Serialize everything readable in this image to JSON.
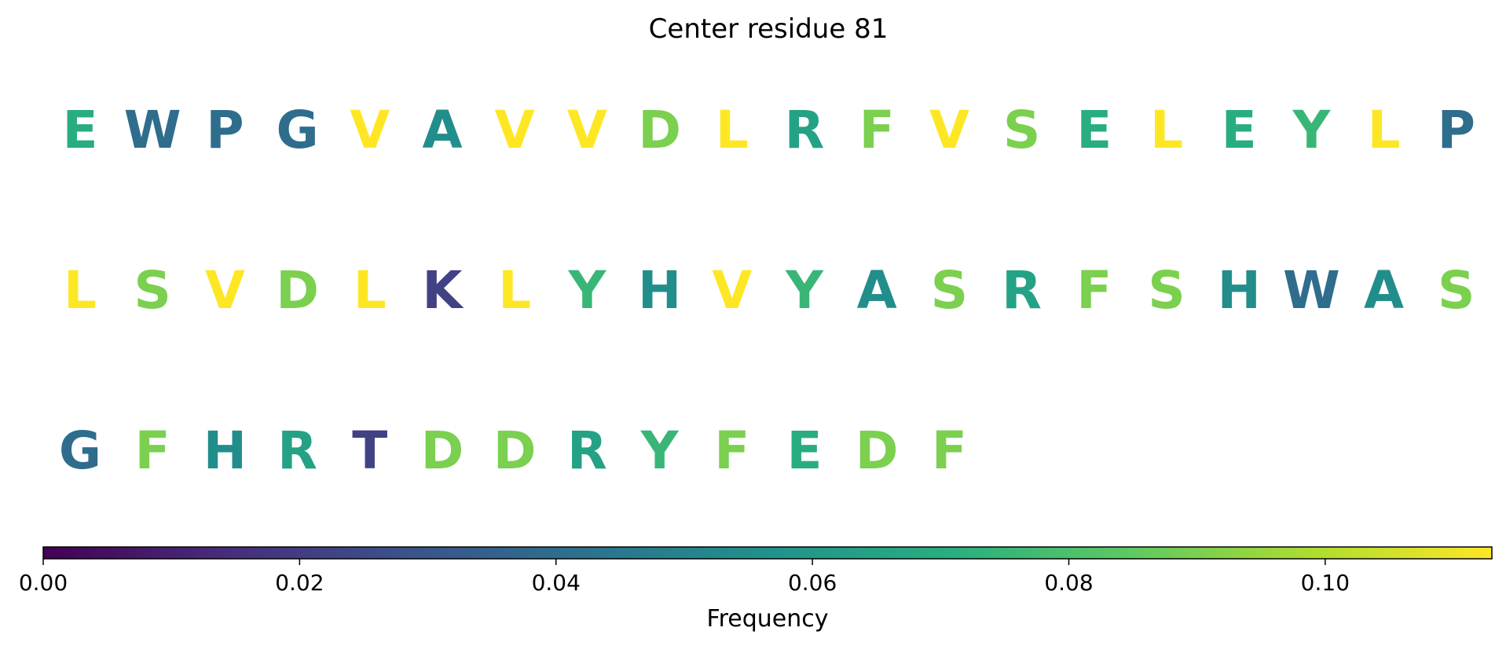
{
  "chart_data": {
    "type": "sequence-logo",
    "title": "Center residue 81",
    "colormap": "viridis",
    "residues": [
      {
        "letter": "E",
        "frequency": 0.07
      },
      {
        "letter": "W",
        "frequency": 0.04
      },
      {
        "letter": "P",
        "frequency": 0.04
      },
      {
        "letter": "G",
        "frequency": 0.04
      },
      {
        "letter": "V",
        "frequency": 0.113
      },
      {
        "letter": "A",
        "frequency": 0.055
      },
      {
        "letter": "V",
        "frequency": 0.113
      },
      {
        "letter": "V",
        "frequency": 0.113
      },
      {
        "letter": "D",
        "frequency": 0.09
      },
      {
        "letter": "L",
        "frequency": 0.113
      },
      {
        "letter": "R",
        "frequency": 0.065
      },
      {
        "letter": "F",
        "frequency": 0.09
      },
      {
        "letter": "V",
        "frequency": 0.113
      },
      {
        "letter": "S",
        "frequency": 0.09
      },
      {
        "letter": "E",
        "frequency": 0.07
      },
      {
        "letter": "L",
        "frequency": 0.113
      },
      {
        "letter": "E",
        "frequency": 0.07
      },
      {
        "letter": "Y",
        "frequency": 0.075
      },
      {
        "letter": "L",
        "frequency": 0.113
      },
      {
        "letter": "P",
        "frequency": 0.04
      },
      {
        "letter": "L",
        "frequency": 0.113
      },
      {
        "letter": "S",
        "frequency": 0.09
      },
      {
        "letter": "V",
        "frequency": 0.113
      },
      {
        "letter": "D",
        "frequency": 0.09
      },
      {
        "letter": "L",
        "frequency": 0.113
      },
      {
        "letter": "K",
        "frequency": 0.022
      },
      {
        "letter": "L",
        "frequency": 0.113
      },
      {
        "letter": "Y",
        "frequency": 0.075
      },
      {
        "letter": "H",
        "frequency": 0.055
      },
      {
        "letter": "V",
        "frequency": 0.113
      },
      {
        "letter": "Y",
        "frequency": 0.075
      },
      {
        "letter": "A",
        "frequency": 0.055
      },
      {
        "letter": "S",
        "frequency": 0.09
      },
      {
        "letter": "R",
        "frequency": 0.065
      },
      {
        "letter": "F",
        "frequency": 0.09
      },
      {
        "letter": "S",
        "frequency": 0.09
      },
      {
        "letter": "H",
        "frequency": 0.055
      },
      {
        "letter": "W",
        "frequency": 0.04
      },
      {
        "letter": "A",
        "frequency": 0.055
      },
      {
        "letter": "S",
        "frequency": 0.09
      },
      {
        "letter": "G",
        "frequency": 0.04
      },
      {
        "letter": "F",
        "frequency": 0.09
      },
      {
        "letter": "H",
        "frequency": 0.055
      },
      {
        "letter": "R",
        "frequency": 0.065
      },
      {
        "letter": "T",
        "frequency": 0.022
      },
      {
        "letter": "D",
        "frequency": 0.09
      },
      {
        "letter": "D",
        "frequency": 0.09
      },
      {
        "letter": "R",
        "frequency": 0.065
      },
      {
        "letter": "Y",
        "frequency": 0.075
      },
      {
        "letter": "F",
        "frequency": 0.09
      },
      {
        "letter": "E",
        "frequency": 0.07
      },
      {
        "letter": "D",
        "frequency": 0.09
      },
      {
        "letter": "F",
        "frequency": 0.09
      }
    ],
    "colorbar": {
      "label": "Frequency",
      "range": [
        0,
        0.113
      ],
      "ticks": [
        0.0,
        0.02,
        0.04,
        0.06,
        0.08,
        0.1
      ],
      "tick_labels": [
        "0.00",
        "0.02",
        "0.04",
        "0.06",
        "0.08",
        "0.10"
      ]
    }
  }
}
